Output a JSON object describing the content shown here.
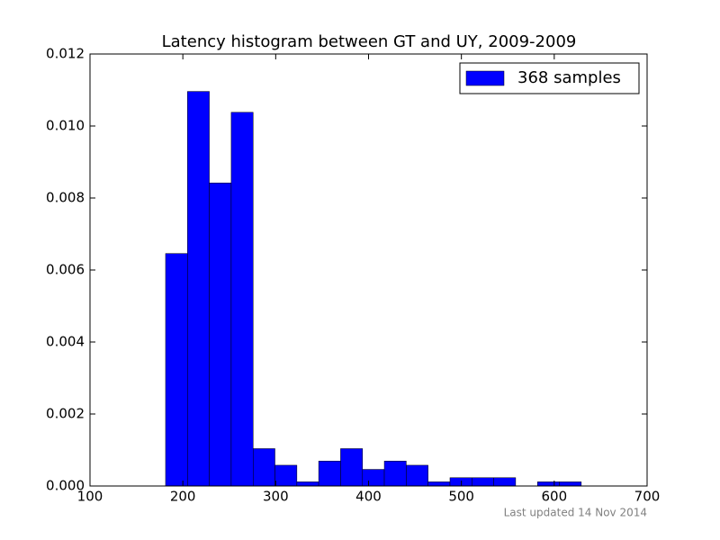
{
  "chart_data": {
    "type": "histogram",
    "title": "Latency histogram between GT and UY, 2009-2009",
    "footer": "Last updated 14 Nov 2014",
    "bins": [
      181.4,
      205.0,
      228.5,
      252.1,
      275.7,
      299.2,
      322.8,
      346.3,
      369.9,
      393.5,
      417.0,
      440.6,
      464.1,
      487.7,
      511.3,
      534.8,
      558.4,
      582.0,
      605.5,
      629.1
    ],
    "series": [
      {
        "name": "368 samples",
        "color": "#0000ff",
        "values": [
          0.006458,
          0.01096,
          0.008419,
          0.01038,
          0.001038,
          0.0005767,
          0.0001153,
          0.000692,
          0.001038,
          0.0004613,
          0.000692,
          0.0005767,
          0.0001153,
          0.0002307,
          0.0002307,
          0.0002307,
          0,
          0.0001153,
          0.0001153
        ]
      }
    ],
    "xlim": [
      100,
      700
    ],
    "xticks": [
      100,
      200,
      300,
      400,
      500,
      600,
      700
    ],
    "ylim": [
      0,
      0.012
    ],
    "yticks": [
      {
        "value": 0,
        "label": "0.000"
      },
      {
        "value": 0.002,
        "label": "0.002"
      },
      {
        "value": 0.004,
        "label": "0.004"
      },
      {
        "value": 0.006,
        "label": "0.006"
      },
      {
        "value": 0.008,
        "label": "0.008"
      },
      {
        "value": 0.01,
        "label": "0.010"
      },
      {
        "value": 0.012,
        "label": "0.012"
      }
    ],
    "legend": "upper right"
  }
}
